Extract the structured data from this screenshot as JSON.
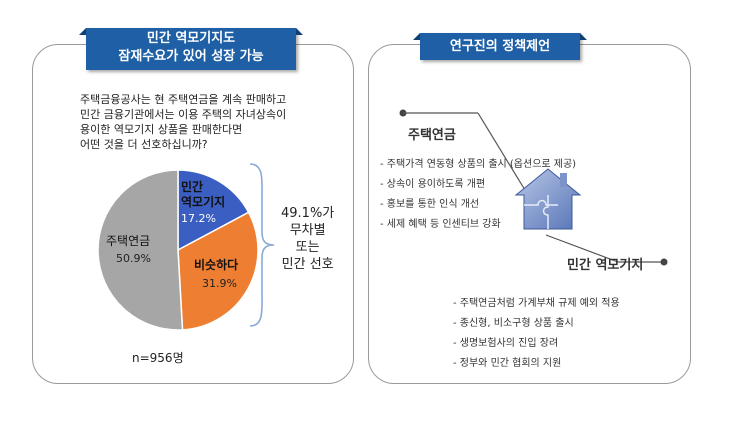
{
  "left": {
    "banner": [
      "민간 역모기지도",
      "잠재수요가 있어 성장 가능"
    ],
    "question": [
      "주택금융공사는 현 주택연금을 계속 판매하고",
      "민간 금융기관에서는 이용 주택의 자녀상속이",
      "용이한 역모기지 상품을 판매한다면",
      "어떤 것을 더 선호하십니까?"
    ],
    "brace_text": [
      "49.1%가",
      "무차별",
      "또는",
      "민간 선호"
    ],
    "sample": "n=956명"
  },
  "chart_data": {
    "type": "pie",
    "slices": [
      {
        "label_lines": [
          "민간",
          "역모기지"
        ],
        "pct_label": "17.2%",
        "value": 17.2,
        "color": "#3a5ec1"
      },
      {
        "label_lines": [
          "비슷하다"
        ],
        "pct_label": "31.9%",
        "value": 31.9,
        "color": "#ee7e32"
      },
      {
        "label_lines": [
          "주택연금"
        ],
        "pct_label": "50.9%",
        "value": 50.9,
        "color": "#a6a6a6"
      }
    ]
  },
  "right": {
    "banner": "연구진의 정책제언",
    "section1": {
      "title": "주택연금",
      "items": [
        "- 주택가격 연동형 상품의 출시 (옵션으로 제공)",
        "- 상속이 용이하도록 개편",
        "- 홍보를 통한 인식 개선",
        "- 세제 혜택 등 인센티브 강화"
      ]
    },
    "section2": {
      "title": "민간 역모기지",
      "items": [
        "- 주택연금처럼 가계부채 규제 예외 적용",
        "- 종신형, 비소구형 상품 출시",
        "- 생명보험사의 진입 장려",
        "- 정부와 민간 협회의 지원"
      ]
    },
    "icon": "house-puzzle-icon"
  }
}
